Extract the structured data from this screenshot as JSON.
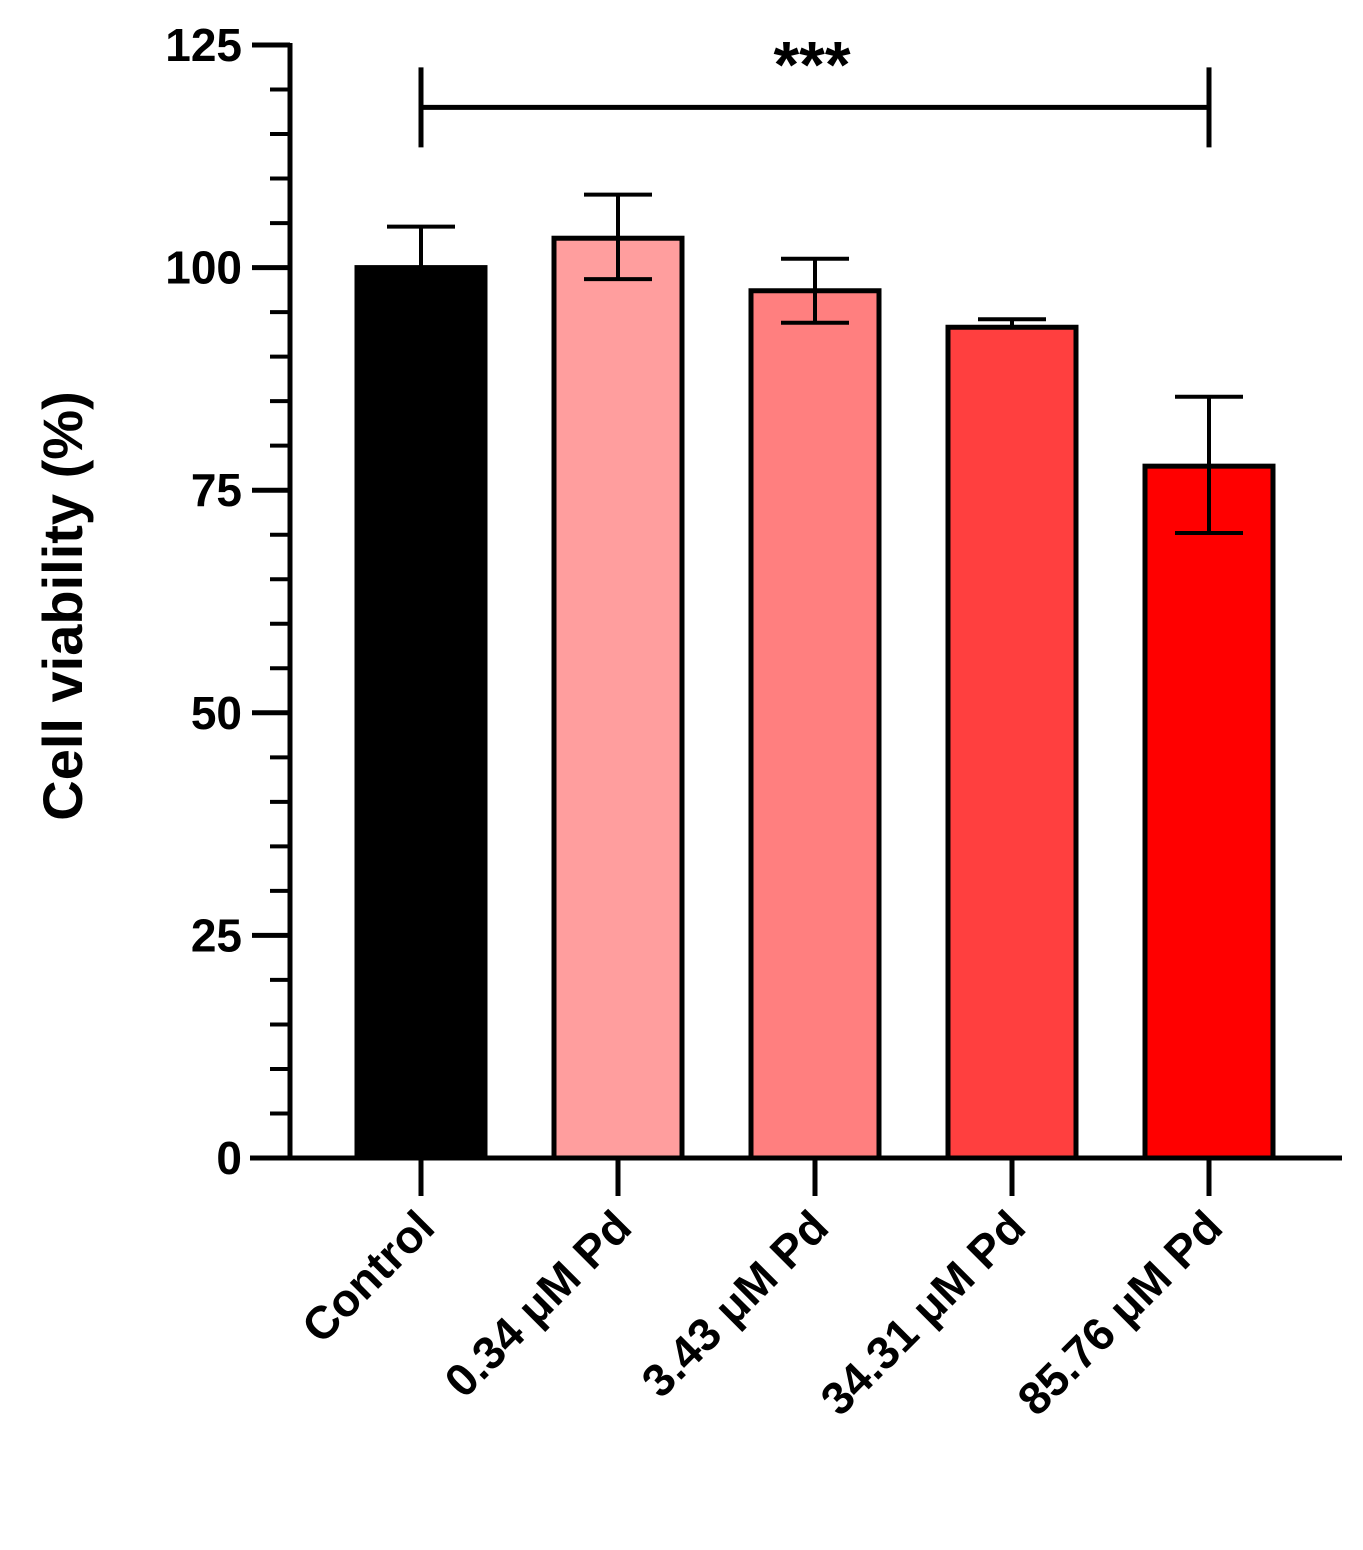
{
  "chart_data": {
    "type": "bar",
    "title": "",
    "xlabel": "",
    "ylabel": "Cell viability (%)",
    "ylim": [
      0,
      125
    ],
    "yticks": [
      0,
      25,
      50,
      75,
      100,
      125
    ],
    "minor_tick_step": 5,
    "grid": false,
    "categories": [
      "Control",
      "0.34 μM Pd",
      "3.43 μM Pd",
      "34.31 μM Pd",
      "85.76 μM Pd"
    ],
    "values": [
      100,
      103.3,
      97.4,
      93.3,
      77.7
    ],
    "error_upper": [
      104.6,
      108.2,
      101.0,
      94.2,
      85.5
    ],
    "error_lower": [
      100,
      98.7,
      93.8,
      93.3,
      70.2
    ],
    "colors": [
      "#000000",
      "#ff9e9e",
      "#ff7f7f",
      "#ff3f3f",
      "#ff0000"
    ],
    "significance": [
      {
        "from": "Control",
        "to": "85.76 μM Pd",
        "y": 118,
        "label": "***"
      }
    ]
  }
}
